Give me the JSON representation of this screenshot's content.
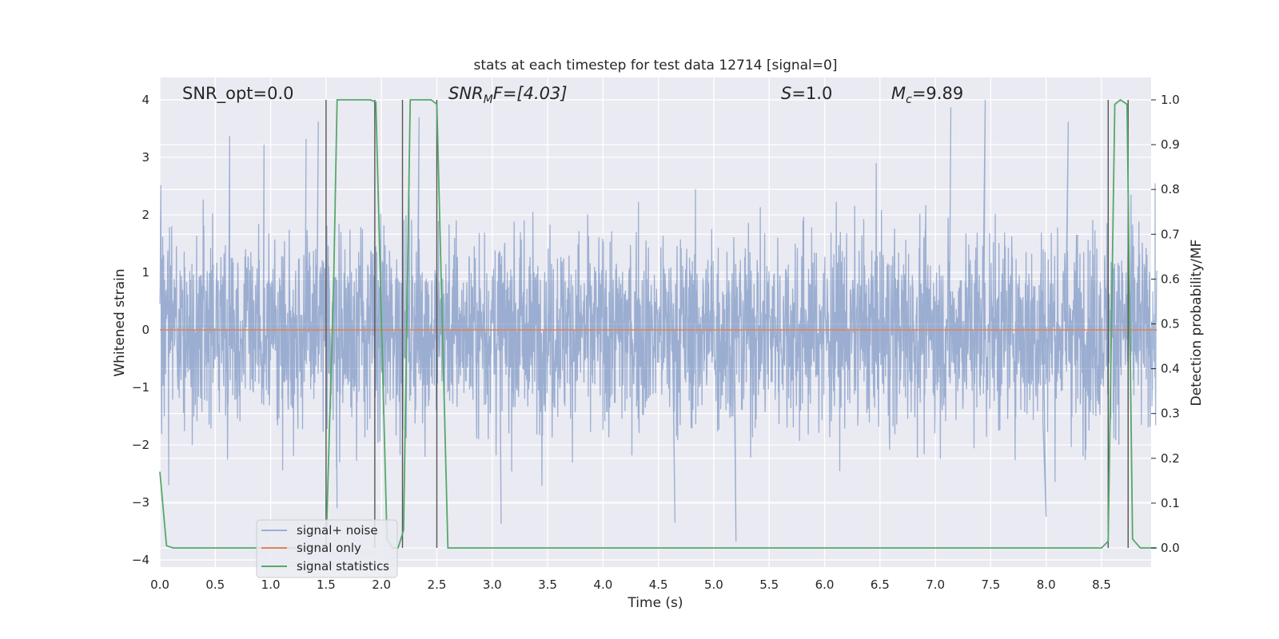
{
  "chart_data": {
    "type": "line",
    "title": "stats at each timestep for test data 12714 [signal=0]",
    "xlabel": "Time (s)",
    "ylabel_left": "Whitened strain",
    "ylabel_right": "Detection probability/MF",
    "xlim": [
      0,
      9.0
    ],
    "ylim_left": [
      -4.2,
      4.4
    ],
    "ylim_right": [
      -0.045,
      1.045
    ],
    "x_ticks": [
      "0.0",
      "0.5",
      "1.0",
      "1.5",
      "2.0",
      "2.5",
      "3.0",
      "3.5",
      "4.0",
      "4.5",
      "5.0",
      "5.5",
      "6.0",
      "6.5",
      "7.0",
      "7.5",
      "8.0",
      "8.5"
    ],
    "y_ticks_left": [
      "−4",
      "−3",
      "−2",
      "−1",
      "0",
      "1",
      "2",
      "3",
      "4"
    ],
    "y_ticks_right": [
      "0.0",
      "0.1",
      "0.2",
      "0.3",
      "0.4",
      "0.5",
      "0.6",
      "0.7",
      "0.8",
      "0.9",
      "1.0"
    ],
    "grid": true,
    "background_color": "#eaeaf2",
    "annotations": {
      "snr_opt": "SNR_opt=0.0",
      "snr_mf": "SNR",
      "snr_mf_sub": "M",
      "snr_mf_rest": "F=[4.03]",
      "s_var": "S",
      "s_rest": "=1.0",
      "mc_var": "M",
      "mc_sub": "c",
      "mc_rest": "=9.89"
    },
    "legend": {
      "placement": "lower-left",
      "entries": [
        {
          "label": "signal+ noise",
          "color": "#4c72b0"
        },
        {
          "label": "signal only",
          "color": "#dd8452"
        },
        {
          "label": "signal statistics",
          "color": "#55a868"
        }
      ]
    },
    "series": [
      {
        "name": "signal+ noise",
        "axis": "left",
        "kind": "noise",
        "color": "#4c72b0",
        "alpha": 0.5,
        "typical_std": 0.85,
        "peak_spikes": [
          {
            "x": 0.63,
            "y": 3.37
          },
          {
            "x": 0.94,
            "y": 3.22
          },
          {
            "x": 1.32,
            "y": 3.32
          },
          {
            "x": 1.43,
            "y": 3.62
          },
          {
            "x": 2.34,
            "y": 3.7
          },
          {
            "x": 7.14,
            "y": 3.87
          },
          {
            "x": 7.45,
            "y": 4.0
          },
          {
            "x": 8.2,
            "y": 3.62
          },
          {
            "x": 5.2,
            "y": -3.68
          },
          {
            "x": 3.08,
            "y": -3.37
          },
          {
            "x": 1.6,
            "y": -3.1
          },
          {
            "x": 8.0,
            "y": -3.25
          },
          {
            "x": 4.65,
            "y": -3.35
          },
          {
            "x": 0.08,
            "y": -2.7
          }
        ]
      },
      {
        "name": "signal only",
        "axis": "left",
        "color": "#dd8452",
        "x": [
          0,
          9.0
        ],
        "y": [
          0,
          0
        ]
      },
      {
        "name": "signal statistics",
        "axis": "right",
        "color": "#55a868",
        "x": [
          0.0,
          0.06,
          0.12,
          0.3,
          1.0,
          1.5,
          1.57,
          1.6,
          1.9,
          1.95,
          2.05,
          2.1,
          2.15,
          2.2,
          2.26,
          2.3,
          2.45,
          2.5,
          2.6,
          3.0,
          8.5,
          8.56,
          8.62,
          8.67,
          8.73,
          8.78,
          8.85,
          8.9,
          9.0
        ],
        "y": [
          0.17,
          0.005,
          0.0,
          0.0,
          0.0,
          0.0,
          0.61,
          1.0,
          1.0,
          0.995,
          0.02,
          0.0,
          0.0,
          0.04,
          1.0,
          1.0,
          1.0,
          0.99,
          0.0,
          0.0,
          0.0,
          0.015,
          0.99,
          1.0,
          0.99,
          0.02,
          0.0,
          0.0,
          0.0
        ]
      }
    ],
    "vertical_lines": {
      "color": "#555555",
      "x": [
        1.5,
        1.94,
        2.19,
        2.5,
        8.56,
        8.74
      ]
    }
  }
}
